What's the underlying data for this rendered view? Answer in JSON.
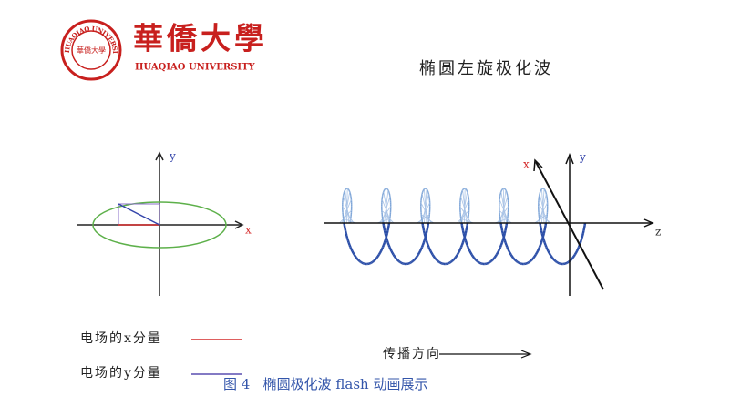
{
  "logo": {
    "chinese_name": "華僑大學",
    "english_name": "HUAQIAO UNIVERSITY",
    "ring_text": "HUAQIAO UNIVERSITY",
    "seal_text": "華僑大學"
  },
  "figure_title": "椭圆左旋极化波",
  "left_axes": {
    "y_label": "y",
    "x_label": "x"
  },
  "right_axes": {
    "x_label": "x",
    "y_label": "y",
    "z_label": "z"
  },
  "legend": {
    "x_component": "电场的x分量",
    "y_component": "电场的y分量"
  },
  "propagation": "传播方向",
  "caption": "图 4   椭圆极化波 flash 动画展示"
}
